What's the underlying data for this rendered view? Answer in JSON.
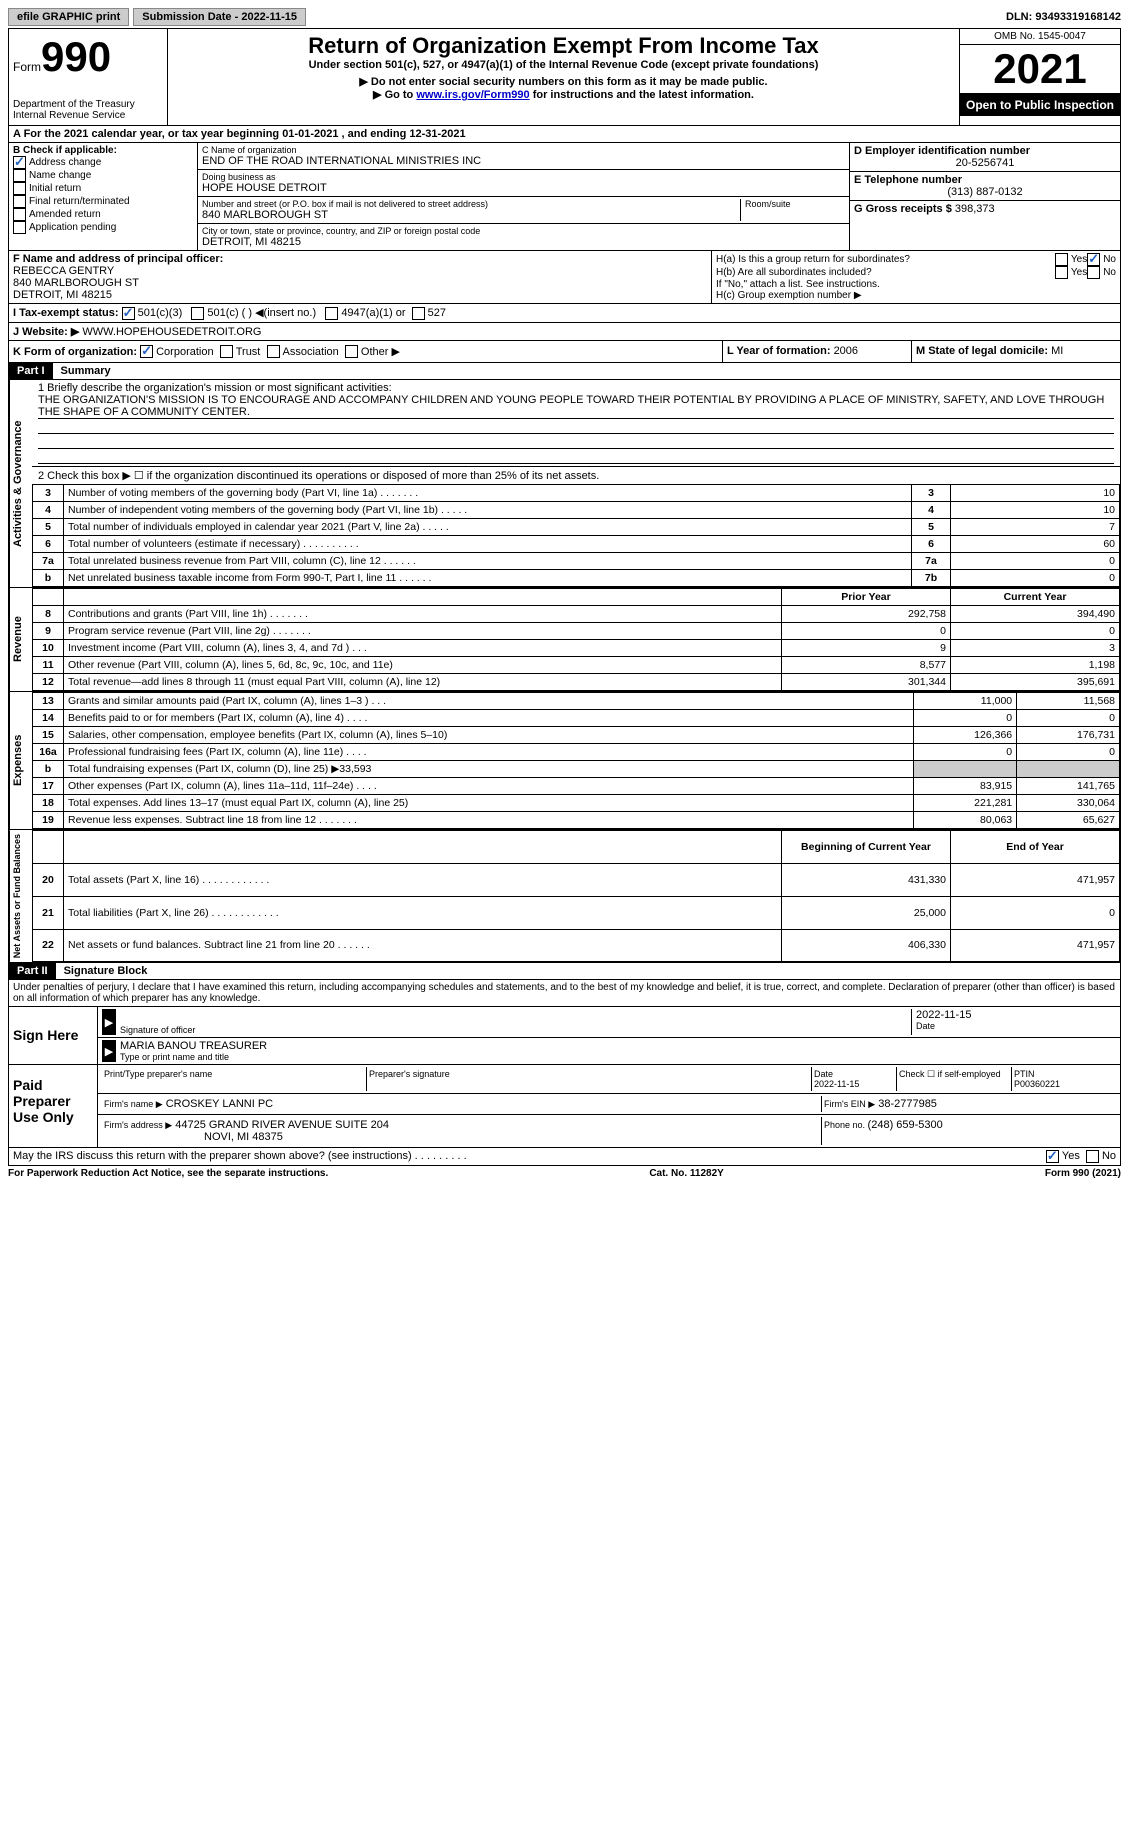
{
  "topbar": {
    "efile": "efile GRAPHIC print",
    "submission_label": "Submission Date - ",
    "submission_date": "2022-11-15",
    "dln_label": "DLN: ",
    "dln": "93493319168142"
  },
  "header": {
    "form_label": "Form",
    "form_no": "990",
    "dept": "Department of the Treasury\nInternal Revenue Service",
    "title": "Return of Organization Exempt From Income Tax",
    "subtitle": "Under section 501(c), 527, or 4947(a)(1) of the Internal Revenue Code (except private foundations)",
    "note1": "▶ Do not enter social security numbers on this form as it may be made public.",
    "note2_pre": "▶ Go to ",
    "note2_link": "www.irs.gov/Form990",
    "note2_post": " for instructions and the latest information.",
    "omb": "OMB No. 1545-0047",
    "year": "2021",
    "open": "Open to Public Inspection"
  },
  "section_a": {
    "text": "A For the 2021 calendar year, or tax year beginning 01-01-2021   , and ending 12-31-2021"
  },
  "section_b": {
    "label": "B Check if applicable:",
    "items": [
      {
        "label": "Address change",
        "checked": true
      },
      {
        "label": "Name change",
        "checked": false
      },
      {
        "label": "Initial return",
        "checked": false
      },
      {
        "label": "Final return/terminated",
        "checked": false
      },
      {
        "label": "Amended return",
        "checked": false
      },
      {
        "label": "Application pending",
        "checked": false
      }
    ]
  },
  "section_c": {
    "name_label": "C Name of organization",
    "name": "END OF THE ROAD INTERNATIONAL MINISTRIES INC",
    "dba_label": "Doing business as",
    "dba": "HOPE HOUSE DETROIT",
    "street_label": "Number and street (or P.O. box if mail is not delivered to street address)",
    "room_label": "Room/suite",
    "street": "840 MARLBOROUGH ST",
    "city_label": "City or town, state or province, country, and ZIP or foreign postal code",
    "city": "DETROIT, MI  48215"
  },
  "section_d": {
    "label": "D Employer identification number",
    "ein": "20-5256741"
  },
  "section_e": {
    "label": "E Telephone number",
    "phone": "(313) 887-0132"
  },
  "section_g": {
    "label": "G Gross receipts $ ",
    "amount": "398,373"
  },
  "section_f": {
    "label": "F Name and address of principal officer:",
    "name": "REBECCA GENTRY",
    "street": "840 MARLBOROUGH ST",
    "city": "DETROIT, MI  48215"
  },
  "section_h": {
    "ha_label": "H(a)  Is this a group return for subordinates?",
    "ha_no": true,
    "hb_label": "H(b)  Are all subordinates included?",
    "hb_note": "If \"No,\" attach a list. See instructions.",
    "hc_label": "H(c)  Group exemption number ▶"
  },
  "section_i": {
    "label": "I   Tax-exempt status:",
    "s501c3": true,
    "opts": [
      "501(c)(3)",
      "501(c) (  ) ◀(insert no.)",
      "4947(a)(1) or",
      "527"
    ]
  },
  "section_j": {
    "label": "J   Website: ▶",
    "url": "WWW.HOPEHOUSEDETROIT.ORG"
  },
  "section_k": {
    "label": "K Form of organization:",
    "corp": true,
    "opts": [
      "Corporation",
      "Trust",
      "Association",
      "Other ▶"
    ]
  },
  "section_l": {
    "label": "L Year of formation: ",
    "year": "2006"
  },
  "section_m": {
    "label": "M State of legal domicile: ",
    "state": "MI"
  },
  "part1": {
    "header": "Part I",
    "title": "Summary",
    "q1_label": "1  Briefly describe the organization's mission or most significant activities:",
    "q1_text": "THE ORGANIZATION'S MISSION IS TO ENCOURAGE AND ACCOMPANY CHILDREN AND YOUNG PEOPLE TOWARD THEIR POTENTIAL BY PROVIDING A PLACE OF MINISTRY, SAFETY, AND LOVE THROUGH THE SHAPE OF A COMMUNITY CENTER.",
    "q2": "2   Check this box ▶ ☐ if the organization discontinued its operations or disposed of more than 25% of its net assets.",
    "vlabels": {
      "gov": "Activities & Governance",
      "rev": "Revenue",
      "exp": "Expenses",
      "net": "Net Assets or Fund Balances"
    },
    "rows_gov": [
      {
        "n": "3",
        "desc": "Number of voting members of the governing body (Part VI, line 1a)  .  .  .  .  .  .  .",
        "box": "3",
        "val": "10"
      },
      {
        "n": "4",
        "desc": "Number of independent voting members of the governing body (Part VI, line 1b)  .  .  .  .  .",
        "box": "4",
        "val": "10"
      },
      {
        "n": "5",
        "desc": "Total number of individuals employed in calendar year 2021 (Part V, line 2a)  .  .  .  .  .",
        "box": "5",
        "val": "7"
      },
      {
        "n": "6",
        "desc": "Total number of volunteers (estimate if necessary)   .   .   .   .   .   .   .   .   .   .",
        "box": "6",
        "val": "60"
      },
      {
        "n": "7a",
        "desc": "Total unrelated business revenue from Part VIII, column (C), line 12   .   .   .   .   .   .",
        "box": "7a",
        "val": "0"
      },
      {
        "n": "b",
        "desc": "Net unrelated business taxable income from Form 990-T, Part I, line 11  .   .   .   .   .   .",
        "box": "7b",
        "val": "0"
      }
    ],
    "col_headers": {
      "prior": "Prior Year",
      "current": "Current Year"
    },
    "rows_rev": [
      {
        "n": "8",
        "desc": "Contributions and grants (Part VIII, line 1h)   .   .   .   .   .   .   .",
        "prior": "292,758",
        "curr": "394,490"
      },
      {
        "n": "9",
        "desc": "Program service revenue (Part VIII, line 2g)   .   .   .   .   .   .   .",
        "prior": "0",
        "curr": "0"
      },
      {
        "n": "10",
        "desc": "Investment income (Part VIII, column (A), lines 3, 4, and 7d )   .   .   .",
        "prior": "9",
        "curr": "3"
      },
      {
        "n": "11",
        "desc": "Other revenue (Part VIII, column (A), lines 5, 6d, 8c, 9c, 10c, and 11e)",
        "prior": "8,577",
        "curr": "1,198"
      },
      {
        "n": "12",
        "desc": "Total revenue—add lines 8 through 11 (must equal Part VIII, column (A), line 12)",
        "prior": "301,344",
        "curr": "395,691"
      }
    ],
    "rows_exp": [
      {
        "n": "13",
        "desc": "Grants and similar amounts paid (Part IX, column (A), lines 1–3 )   .   .   .",
        "prior": "11,000",
        "curr": "11,568"
      },
      {
        "n": "14",
        "desc": "Benefits paid to or for members (Part IX, column (A), line 4)   .   .   .   .",
        "prior": "0",
        "curr": "0"
      },
      {
        "n": "15",
        "desc": "Salaries, other compensation, employee benefits (Part IX, column (A), lines 5–10)",
        "prior": "126,366",
        "curr": "176,731"
      },
      {
        "n": "16a",
        "desc": "Professional fundraising fees (Part IX, column (A), line 11e)   .   .   .   .",
        "prior": "0",
        "curr": "0"
      },
      {
        "n": "b",
        "desc": "Total fundraising expenses (Part IX, column (D), line 25) ▶33,593",
        "prior": "",
        "curr": "",
        "gray": true
      },
      {
        "n": "17",
        "desc": "Other expenses (Part IX, column (A), lines 11a–11d, 11f–24e)   .   .   .   .",
        "prior": "83,915",
        "curr": "141,765"
      },
      {
        "n": "18",
        "desc": "Total expenses. Add lines 13–17 (must equal Part IX, column (A), line 25)",
        "prior": "221,281",
        "curr": "330,064"
      },
      {
        "n": "19",
        "desc": "Revenue less expenses. Subtract line 18 from line 12  .   .   .   .   .   .   .",
        "prior": "80,063",
        "curr": "65,627"
      }
    ],
    "net_headers": {
      "begin": "Beginning of Current Year",
      "end": "End of Year"
    },
    "rows_net": [
      {
        "n": "20",
        "desc": "Total assets (Part X, line 16)   .   .   .   .   .   .   .   .   .   .   .   .",
        "prior": "431,330",
        "curr": "471,957"
      },
      {
        "n": "21",
        "desc": "Total liabilities (Part X, line 26)  .   .   .   .   .   .   .   .   .   .   .   .",
        "prior": "25,000",
        "curr": "0"
      },
      {
        "n": "22",
        "desc": "Net assets or fund balances. Subtract line 21 from line 20  .   .   .   .   .   .",
        "prior": "406,330",
        "curr": "471,957"
      }
    ]
  },
  "part2": {
    "header": "Part II",
    "title": "Signature Block",
    "declaration": "Under penalties of perjury, I declare that I have examined this return, including accompanying schedules and statements, and to the best of my knowledge and belief, it is true, correct, and complete. Declaration of preparer (other than officer) is based on all information of which preparer has any knowledge.",
    "sign_here": "Sign Here",
    "sig_officer": "Signature of officer",
    "sig_date": "2022-11-15",
    "date_label": "Date",
    "officer_name": "MARIA BANOU  TREASURER",
    "name_label": "Type or print name and title",
    "paid_prep": "Paid Preparer Use Only",
    "prep_name_label": "Print/Type preparer's name",
    "prep_sig_label": "Preparer's signature",
    "prep_date_label": "Date",
    "prep_date": "2022-11-15",
    "check_label": "Check ☐ if self-employed",
    "ptin_label": "PTIN",
    "ptin": "P00360221",
    "firm_name_label": "Firm's name     ▶",
    "firm_name": "CROSKEY LANNI PC",
    "firm_ein_label": "Firm's EIN ▶",
    "firm_ein": "38-2777985",
    "firm_addr_label": "Firm's address ▶",
    "firm_addr1": "44725 GRAND RIVER AVENUE SUITE 204",
    "firm_addr2": "NOVI, MI  48375",
    "phone_label": "Phone no. ",
    "phone": "(248) 659-5300",
    "discuss": "May the IRS discuss this return with the preparer shown above? (see instructions)  .   .   .   .   .   .   .   .   .",
    "discuss_yes": true
  },
  "footer": {
    "left": "For Paperwork Reduction Act Notice, see the separate instructions.",
    "center": "Cat. No. 11282Y",
    "right": "Form 990 (2021)"
  }
}
